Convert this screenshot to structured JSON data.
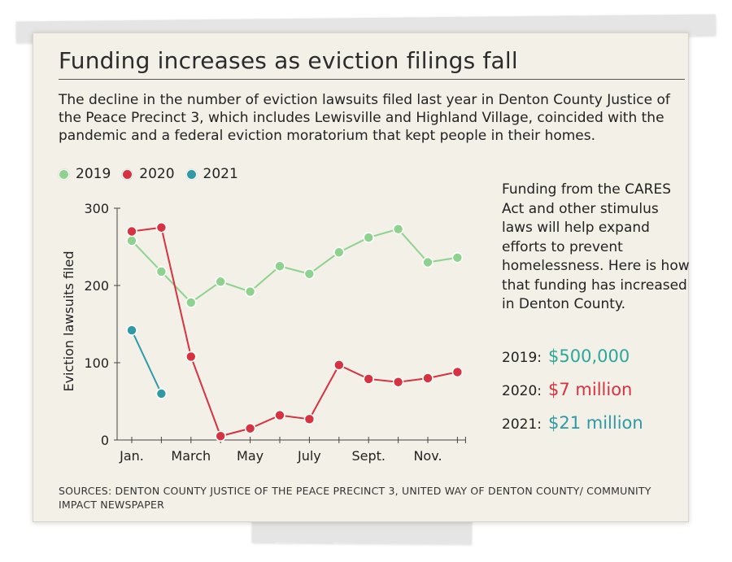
{
  "title": "Funding increases as eviction filings fall",
  "subtitle": "The decline in the number of eviction lawsuits filed last year in Denton County Justice of the Peace Precinct 3, which includes Lewisville and Highland Village, coincided with the pandemic and a federal eviction moratorium that kept people in their homes.",
  "legend": [
    {
      "label": "2019",
      "color": "#8dd38d"
    },
    {
      "label": "2020",
      "color": "#d8313f"
    },
    {
      "label": "2021",
      "color": "#2d9aa6"
    }
  ],
  "sidebar_text": "Funding from the CARES Act and other stimulus laws will help expand efforts to prevent homelessness. Here is how that funding has increased in Denton County.",
  "funding": [
    {
      "label": "2019:",
      "amount": "$500,000",
      "color": "#2aa89a"
    },
    {
      "label": "2020:",
      "amount": "$7 million",
      "color": "#d8313f"
    },
    {
      "label": "2021:",
      "amount": "$21 million",
      "color": "#2d9aa6"
    }
  ],
  "sources": "SOURCES: DENTON COUNTY JUSTICE OF THE PEACE PRECINCT 3, UNITED WAY OF DENTON COUNTY/ COMMUNITY IMPACT NEWSPAPER",
  "chart_data": {
    "type": "line",
    "ylabel": "Eviction lawsuits filed",
    "ylim": [
      0,
      300
    ],
    "yticks": [
      0,
      100,
      200,
      300
    ],
    "x_months": [
      1,
      2,
      3,
      4,
      5,
      6,
      7,
      8,
      9,
      10,
      11,
      12
    ],
    "xtick_labels": [
      {
        "month": 1,
        "label": "Jan."
      },
      {
        "month": 3,
        "label": "March"
      },
      {
        "month": 5,
        "label": "May"
      },
      {
        "month": 7,
        "label": "July"
      },
      {
        "month": 9,
        "label": "Sept."
      },
      {
        "month": 11,
        "label": "Nov."
      }
    ],
    "series": [
      {
        "name": "2019",
        "color": "#8dd38d",
        "values": [
          258,
          218,
          178,
          205,
          192,
          225,
          215,
          243,
          262,
          273,
          230,
          236
        ]
      },
      {
        "name": "2020",
        "color": "#d8313f",
        "values": [
          270,
          275,
          108,
          5,
          15,
          32,
          27,
          97,
          79,
          75,
          80,
          88
        ]
      },
      {
        "name": "2021",
        "color": "#2d9aa6",
        "values": [
          142,
          60
        ]
      }
    ],
    "grid": false,
    "legend_position": "top-left"
  }
}
